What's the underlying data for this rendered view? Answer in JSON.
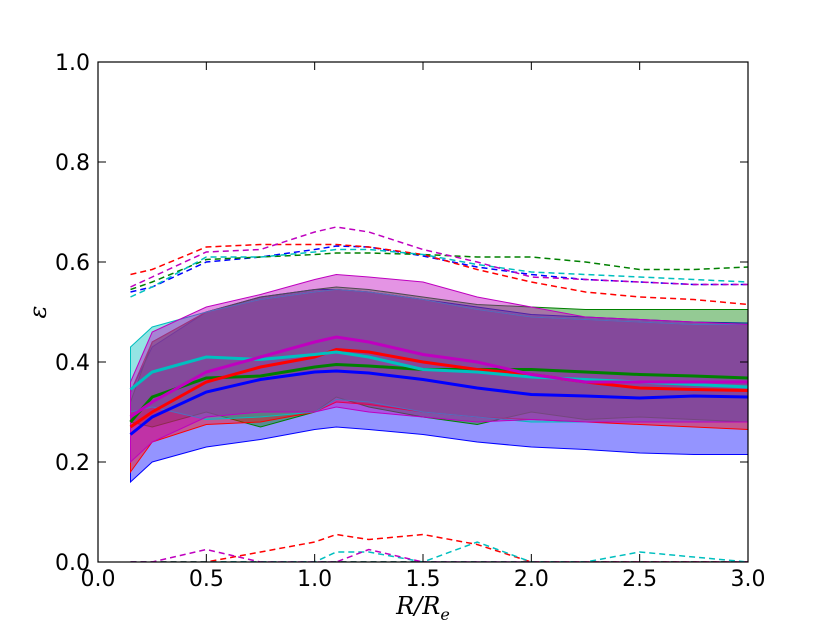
{
  "chart_data": {
    "type": "line",
    "xlabel": "R/R",
    "xlabel_sub": "e",
    "ylabel": "ε",
    "xlim": [
      0.0,
      3.0
    ],
    "ylim": [
      0.0,
      1.0
    ],
    "xticks": [
      "0.0",
      "0.5",
      "1.0",
      "1.5",
      "2.0",
      "2.5",
      "3.0"
    ],
    "yticks": [
      "0.0",
      "0.2",
      "0.4",
      "0.6",
      "0.8",
      "1.0"
    ],
    "grid": false,
    "legend": "none",
    "x": [
      0.15,
      0.25,
      0.5,
      0.75,
      1.0,
      1.1,
      1.25,
      1.5,
      1.75,
      2.0,
      2.25,
      2.5,
      2.75,
      3.0
    ],
    "series": [
      {
        "color": "#0000ff",
        "median": [
          0.255,
          0.29,
          0.34,
          0.365,
          0.38,
          0.382,
          0.378,
          0.365,
          0.348,
          0.335,
          0.332,
          0.328,
          0.332,
          0.33
        ],
        "band_low": [
          0.16,
          0.2,
          0.23,
          0.245,
          0.265,
          0.27,
          0.265,
          0.255,
          0.24,
          0.23,
          0.225,
          0.218,
          0.215,
          0.215
        ],
        "band_high": [
          0.34,
          0.43,
          0.5,
          0.53,
          0.545,
          0.545,
          0.54,
          0.525,
          0.51,
          0.495,
          0.49,
          0.485,
          0.48,
          0.478
        ],
        "upper_dashed": [
          0.54,
          0.55,
          0.6,
          0.61,
          0.625,
          0.632,
          0.63,
          0.612,
          0.59,
          0.575,
          0.565,
          0.56,
          0.555,
          0.555
        ],
        "lower_dashed": [
          0.0,
          0.0,
          0.0,
          0.0,
          0.0,
          0.0,
          0.0,
          0.0,
          0.0,
          0.0,
          0.0,
          0.0,
          0.0,
          0.0
        ]
      },
      {
        "color": "#008000",
        "median": [
          0.28,
          0.33,
          0.368,
          0.372,
          0.39,
          0.395,
          0.392,
          0.385,
          0.385,
          0.385,
          0.38,
          0.375,
          0.372,
          0.368
        ],
        "band_low": [
          0.28,
          0.27,
          0.3,
          0.27,
          0.3,
          0.33,
          0.31,
          0.29,
          0.275,
          0.3,
          0.285,
          0.29,
          0.285,
          0.28
        ],
        "band_high": [
          0.32,
          0.44,
          0.5,
          0.53,
          0.545,
          0.55,
          0.545,
          0.53,
          0.515,
          0.51,
          0.505,
          0.505,
          0.505,
          0.505
        ],
        "upper_dashed": [
          0.545,
          0.56,
          0.605,
          0.61,
          0.615,
          0.618,
          0.618,
          0.615,
          0.61,
          0.61,
          0.6,
          0.585,
          0.585,
          0.59
        ],
        "lower_dashed": [
          0.0,
          0.0,
          0.0,
          0.0,
          0.0,
          0.0,
          0.0,
          0.0,
          0.0,
          0.0,
          0.0,
          0.0,
          0.0,
          0.0
        ]
      },
      {
        "color": "#ff0000",
        "median": [
          0.27,
          0.3,
          0.36,
          0.39,
          0.41,
          0.425,
          0.42,
          0.4,
          0.385,
          0.375,
          0.36,
          0.348,
          0.345,
          0.343
        ],
        "band_low": [
          0.18,
          0.24,
          0.275,
          0.28,
          0.3,
          0.32,
          0.315,
          0.3,
          0.29,
          0.285,
          0.28,
          0.275,
          0.27,
          0.265
        ],
        "band_high": [
          0.34,
          0.44,
          0.5,
          0.525,
          0.54,
          0.545,
          0.54,
          0.525,
          0.505,
          0.49,
          0.485,
          0.48,
          0.475,
          0.475
        ],
        "upper_dashed": [
          0.575,
          0.585,
          0.63,
          0.635,
          0.635,
          0.635,
          0.63,
          0.615,
          0.585,
          0.56,
          0.54,
          0.53,
          0.525,
          0.515
        ],
        "lower_dashed": [
          0.0,
          0.0,
          0.0,
          0.02,
          0.04,
          0.055,
          0.045,
          0.055,
          0.035,
          0.0,
          0.0,
          0.0,
          0.0,
          0.0
        ]
      },
      {
        "color": "#00bfbf",
        "median": [
          0.345,
          0.38,
          0.41,
          0.405,
          0.415,
          0.42,
          0.41,
          0.385,
          0.38,
          0.37,
          0.365,
          0.36,
          0.355,
          0.35
        ],
        "band_low": [
          0.3,
          0.31,
          0.285,
          0.29,
          0.3,
          0.325,
          0.32,
          0.3,
          0.29,
          0.28,
          0.28,
          0.28,
          0.28,
          0.28
        ],
        "band_high": [
          0.43,
          0.47,
          0.5,
          0.525,
          0.54,
          0.545,
          0.54,
          0.525,
          0.505,
          0.49,
          0.485,
          0.48,
          0.475,
          0.475
        ],
        "upper_dashed": [
          0.53,
          0.55,
          0.61,
          0.61,
          0.62,
          0.625,
          0.625,
          0.615,
          0.595,
          0.58,
          0.575,
          0.57,
          0.565,
          0.56
        ],
        "lower_dashed": [
          0.0,
          0.0,
          0.0,
          0.0,
          0.0,
          0.02,
          0.02,
          0.0,
          0.04,
          0.0,
          0.0,
          0.02,
          0.01,
          0.0
        ]
      },
      {
        "color": "#bf00bf",
        "median": [
          0.29,
          0.32,
          0.38,
          0.41,
          0.44,
          0.45,
          0.44,
          0.415,
          0.4,
          0.375,
          0.36,
          0.36,
          0.36,
          0.36
        ],
        "band_low": [
          0.2,
          0.24,
          0.29,
          0.3,
          0.3,
          0.31,
          0.3,
          0.29,
          0.28,
          0.285,
          0.28,
          0.28,
          0.28,
          0.28
        ],
        "band_high": [
          0.36,
          0.46,
          0.51,
          0.535,
          0.565,
          0.575,
          0.57,
          0.56,
          0.53,
          0.51,
          0.49,
          0.485,
          0.48,
          0.475
        ],
        "upper_dashed": [
          0.55,
          0.57,
          0.62,
          0.625,
          0.66,
          0.67,
          0.66,
          0.625,
          0.6,
          0.57,
          0.565,
          0.56,
          0.555,
          0.555
        ],
        "lower_dashed": [
          0.0,
          0.0,
          0.025,
          0.0,
          0.0,
          0.0,
          0.025,
          0.0,
          0.0,
          0.0,
          0.0,
          0.0,
          0.0,
          0.0
        ]
      }
    ]
  }
}
